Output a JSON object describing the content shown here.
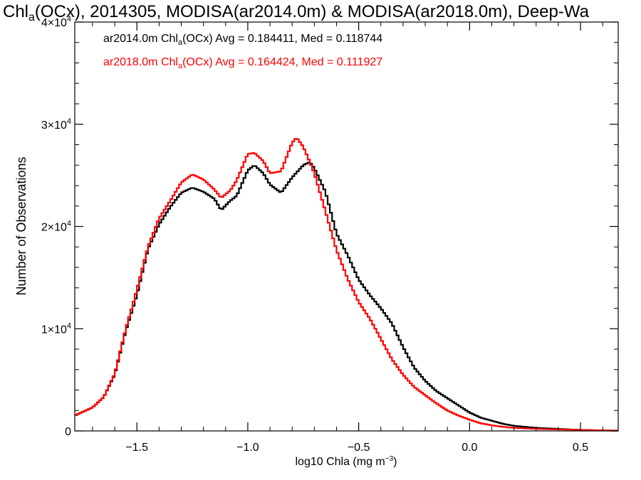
{
  "chart_data": {
    "type": "line",
    "title": {
      "pre": "Chl",
      "sub": "a",
      "post": "(OCx), 2014305, MODISA(ar2014.0m) & MODISA(ar2018.0m), Deep-Wa"
    },
    "xlabel": {
      "pre": "log10 Chla (mg m",
      "sup": "−3",
      "post": ")"
    },
    "ylabel": "Number of Observations",
    "xlim": [
      -1.78,
      0.67
    ],
    "ylim": [
      0,
      40000
    ],
    "x_ticks": [
      {
        "value": -1.5,
        "label": "−1.5"
      },
      {
        "value": -1.0,
        "label": "−1.0"
      },
      {
        "value": -0.5,
        "label": "−0.5"
      },
      {
        "value": 0.0,
        "label": "0.0"
      },
      {
        "value": 0.5,
        "label": "0.5"
      }
    ],
    "y_ticks": [
      {
        "value": 0,
        "base": "0",
        "exp": ""
      },
      {
        "value": 10000,
        "base": "1×10",
        "exp": "4"
      },
      {
        "value": 20000,
        "base": "2×10",
        "exp": "4"
      },
      {
        "value": 30000,
        "base": "3×10",
        "exp": "4"
      },
      {
        "value": 40000,
        "base": "4×10",
        "exp": "4"
      }
    ],
    "annotations": [
      {
        "pre": "ar2014.0m Chl",
        "sub": "a",
        "post": "(OCx) Avg = 0.184411, Med = 0.118744",
        "color": "#000000"
      },
      {
        "pre": "ar2018.0m Chl",
        "sub": "a",
        "post": "(OCx) Avg = 0.164424, Med = 0.111927",
        "color": "#ff0000"
      }
    ],
    "series": [
      {
        "name": "ar2014.0m",
        "color": "#000000",
        "points": [
          [
            -1.78,
            1500
          ],
          [
            -1.7,
            2300
          ],
          [
            -1.65,
            3300
          ],
          [
            -1.6,
            5500
          ],
          [
            -1.55,
            9800
          ],
          [
            -1.5,
            13300
          ],
          [
            -1.45,
            17800
          ],
          [
            -1.4,
            20200
          ],
          [
            -1.35,
            21900
          ],
          [
            -1.3,
            23300
          ],
          [
            -1.25,
            23800
          ],
          [
            -1.2,
            23400
          ],
          [
            -1.15,
            22700
          ],
          [
            -1.12,
            21600
          ],
          [
            -1.08,
            22500
          ],
          [
            -1.05,
            23000
          ],
          [
            -1.0,
            25500
          ],
          [
            -0.97,
            26000
          ],
          [
            -0.93,
            25200
          ],
          [
            -0.9,
            24100
          ],
          [
            -0.85,
            23300
          ],
          [
            -0.8,
            24800
          ],
          [
            -0.75,
            26000
          ],
          [
            -0.72,
            26300
          ],
          [
            -0.7,
            25700
          ],
          [
            -0.65,
            23400
          ],
          [
            -0.6,
            19300
          ],
          [
            -0.55,
            17200
          ],
          [
            -0.5,
            14800
          ],
          [
            -0.45,
            13300
          ],
          [
            -0.4,
            12000
          ],
          [
            -0.35,
            10500
          ],
          [
            -0.3,
            8200
          ],
          [
            -0.25,
            6200
          ],
          [
            -0.2,
            4900
          ],
          [
            -0.15,
            3900
          ],
          [
            -0.1,
            3200
          ],
          [
            -0.05,
            2500
          ],
          [
            0.0,
            1800
          ],
          [
            0.05,
            1300
          ],
          [
            0.1,
            1000
          ],
          [
            0.15,
            700
          ],
          [
            0.2,
            500
          ],
          [
            0.3,
            300
          ],
          [
            0.4,
            200
          ],
          [
            0.5,
            100
          ],
          [
            0.6,
            50
          ],
          [
            0.67,
            30
          ]
        ]
      },
      {
        "name": "ar2018.0m",
        "color": "#ff0000",
        "points": [
          [
            -1.78,
            1500
          ],
          [
            -1.7,
            2300
          ],
          [
            -1.65,
            3300
          ],
          [
            -1.6,
            5600
          ],
          [
            -1.55,
            10000
          ],
          [
            -1.5,
            13800
          ],
          [
            -1.45,
            18000
          ],
          [
            -1.4,
            20800
          ],
          [
            -1.35,
            22500
          ],
          [
            -1.3,
            24300
          ],
          [
            -1.25,
            25100
          ],
          [
            -1.2,
            24600
          ],
          [
            -1.15,
            23600
          ],
          [
            -1.12,
            22800
          ],
          [
            -1.08,
            23500
          ],
          [
            -1.05,
            24500
          ],
          [
            -1.0,
            27100
          ],
          [
            -0.97,
            27200
          ],
          [
            -0.93,
            26400
          ],
          [
            -0.9,
            25200
          ],
          [
            -0.85,
            25400
          ],
          [
            -0.8,
            28200
          ],
          [
            -0.78,
            28700
          ],
          [
            -0.75,
            27800
          ],
          [
            -0.72,
            26300
          ],
          [
            -0.7,
            25200
          ],
          [
            -0.65,
            21500
          ],
          [
            -0.6,
            17700
          ],
          [
            -0.55,
            14900
          ],
          [
            -0.5,
            12600
          ],
          [
            -0.45,
            11000
          ],
          [
            -0.4,
            9000
          ],
          [
            -0.35,
            7000
          ],
          [
            -0.3,
            5500
          ],
          [
            -0.25,
            4300
          ],
          [
            -0.2,
            3500
          ],
          [
            -0.15,
            2700
          ],
          [
            -0.1,
            2000
          ],
          [
            -0.05,
            1500
          ],
          [
            0.0,
            1100
          ],
          [
            0.05,
            750
          ],
          [
            0.1,
            550
          ],
          [
            0.15,
            400
          ],
          [
            0.2,
            300
          ],
          [
            0.3,
            200
          ],
          [
            0.4,
            150
          ],
          [
            0.5,
            100
          ],
          [
            0.6,
            50
          ],
          [
            0.67,
            30
          ]
        ]
      }
    ]
  }
}
